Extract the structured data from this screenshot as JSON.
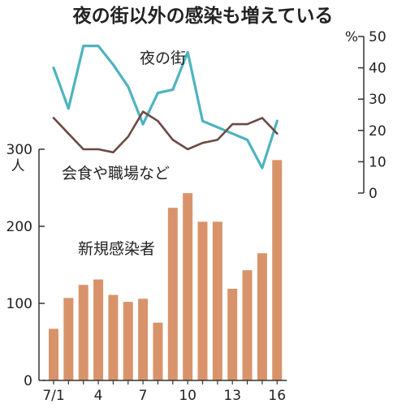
{
  "chart_data": {
    "title": "夜の街以外の感染も増えている",
    "type": "bar+line",
    "categories": [
      "7/1",
      "7/2",
      "7/3",
      "7/4",
      "7/5",
      "7/6",
      "7/7",
      "7/8",
      "7/9",
      "7/10",
      "7/11",
      "7/12",
      "7/13",
      "7/14",
      "7/15",
      "7/16"
    ],
    "x_tick_labels": [
      {
        "index": 0,
        "label": "7/1"
      },
      {
        "index": 3,
        "label": "4"
      },
      {
        "index": 6,
        "label": "7"
      },
      {
        "index": 9,
        "label": "10"
      },
      {
        "index": 12,
        "label": "13"
      },
      {
        "index": 15,
        "label": "16"
      }
    ],
    "left_axis": {
      "unit": "人",
      "ticks": [
        0,
        100,
        200,
        300
      ],
      "ylim": [
        0,
        300
      ]
    },
    "right_axis": {
      "unit": "%",
      "ticks": [
        0,
        10,
        20,
        30,
        40,
        50
      ],
      "ylim": [
        0,
        50
      ]
    },
    "bar_series": {
      "name": "新規感染者",
      "color": "#d9936a",
      "values": [
        67,
        107,
        124,
        131,
        111,
        102,
        106,
        75,
        224,
        243,
        206,
        206,
        119,
        143,
        165,
        286
      ]
    },
    "line_series": [
      {
        "name": "夜の街",
        "color": "#4fb3bf",
        "values": [
          40,
          27,
          47,
          47,
          41,
          34,
          22,
          32,
          33,
          45,
          23,
          21,
          19,
          17,
          8,
          23
        ]
      },
      {
        "name": "会食や職場など",
        "color": "#6b4a44",
        "values": [
          24,
          19,
          14,
          14,
          13,
          18,
          26,
          23,
          17,
          14,
          16,
          17,
          22,
          22,
          24,
          19
        ]
      }
    ],
    "grid": false,
    "legend": "inline labels"
  }
}
